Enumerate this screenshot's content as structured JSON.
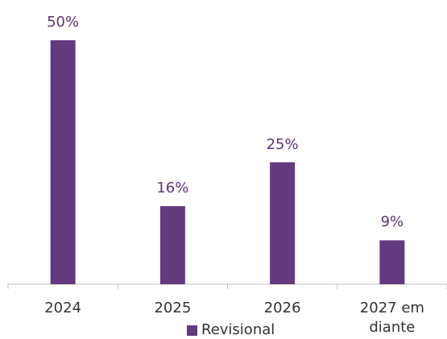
{
  "chart_data": {
    "type": "bar",
    "categories": [
      "2024",
      "2025",
      "2026",
      "2027 em diante"
    ],
    "series": [
      {
        "name": "Revisional",
        "color": "#643a7f",
        "values": [
          50,
          16,
          25,
          9
        ],
        "value_labels": [
          "50%",
          "16%",
          "25%",
          "9%"
        ]
      }
    ],
    "legend": "bottom"
  }
}
